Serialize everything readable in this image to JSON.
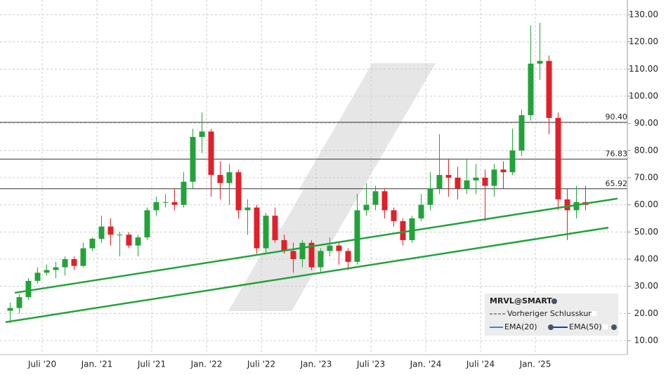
{
  "chart_data": {
    "type": "candlestick",
    "x": [
      "2020-03",
      "2020-04",
      "2020-05",
      "2020-06",
      "2020-07",
      "2020-08",
      "2020-09",
      "2020-10",
      "2020-11",
      "2020-12",
      "2021-01",
      "2021-02",
      "2021-03",
      "2021-04",
      "2021-05",
      "2021-06",
      "2021-07",
      "2021-08",
      "2021-09",
      "2021-10",
      "2021-11",
      "2021-12",
      "2022-01",
      "2022-02",
      "2022-03",
      "2022-04",
      "2022-05",
      "2022-06",
      "2022-07",
      "2022-08",
      "2022-09",
      "2022-10",
      "2022-11",
      "2022-12",
      "2023-01",
      "2023-02",
      "2023-03",
      "2023-04",
      "2023-05",
      "2023-06",
      "2023-07",
      "2023-08",
      "2023-09",
      "2023-10",
      "2023-11",
      "2023-12",
      "2024-01",
      "2024-02",
      "2024-03",
      "2024-04",
      "2024-05",
      "2024-06",
      "2024-07",
      "2024-08",
      "2024-09",
      "2024-10",
      "2024-11",
      "2024-12",
      "2025-01",
      "2025-02",
      "2025-03",
      "2025-04",
      "2025-05",
      "2025-06"
    ],
    "series": [
      {
        "name": "MRVL@SMART",
        "up_color": "#22a33a",
        "down_color": "#e0202a",
        "open": [
          21,
          22,
          26,
          32,
          35,
          36,
          37,
          40,
          37.5,
          44,
          47.5,
          52,
          49,
          49,
          45,
          48,
          58,
          61,
          61,
          60,
          68.5,
          85,
          87,
          71,
          68,
          72,
          58,
          59,
          44,
          56,
          47,
          43,
          40,
          46,
          37,
          43,
          45,
          43,
          39,
          58,
          60,
          65,
          58,
          54,
          47,
          55,
          60,
          66,
          71,
          70,
          66,
          69,
          70,
          67,
          73,
          72,
          80,
          93,
          112,
          113,
          92,
          62,
          58,
          61
        ],
        "high": [
          24,
          27,
          33,
          37,
          38,
          39,
          41,
          41,
          46,
          48,
          56,
          55,
          50,
          50,
          49,
          59,
          63,
          64,
          66,
          72,
          88,
          94,
          88,
          76,
          75,
          73,
          62,
          60,
          57,
          59,
          49,
          46,
          47,
          47,
          44,
          48,
          46,
          44,
          64,
          68,
          67,
          66,
          59,
          55,
          56,
          64,
          72,
          86,
          77,
          74,
          77,
          75,
          73,
          75,
          76,
          88,
          95,
          126,
          127,
          115,
          94,
          66,
          67,
          67
        ],
        "low": [
          16.5,
          20,
          25,
          31,
          34,
          33,
          34,
          36,
          37,
          43,
          46,
          45,
          41,
          44,
          41,
          47,
          56,
          59,
          58,
          59,
          66,
          79,
          63,
          62,
          60,
          55,
          49,
          42,
          42,
          46,
          42,
          35,
          37,
          36,
          35,
          41,
          38,
          36,
          38,
          56,
          58,
          55,
          52,
          45,
          46,
          54,
          58,
          64,
          63,
          62,
          64,
          64,
          54,
          63,
          66,
          71,
          78,
          91,
          106,
          86,
          58,
          47,
          55,
          58
        ],
        "close": [
          22,
          26,
          32,
          35,
          36,
          37,
          40,
          37.5,
          44,
          47.5,
          52,
          49,
          49,
          45,
          48,
          58,
          61,
          61,
          60,
          68.5,
          85,
          87,
          71,
          68,
          72,
          58,
          59,
          44,
          56,
          47,
          43,
          40,
          46,
          37,
          43,
          45,
          43,
          39,
          58,
          60,
          65,
          58,
          54,
          47,
          55,
          60,
          66,
          71,
          70,
          66,
          69,
          70,
          67,
          73,
          72,
          80,
          93,
          112,
          113,
          92,
          62,
          58,
          61,
          60
        ]
      }
    ],
    "levels": [
      {
        "value": 90.4,
        "label": "90.40"
      },
      {
        "value": 76.83,
        "label": "76.83"
      },
      {
        "value": 65.92,
        "label": "65.92"
      }
    ],
    "trendlines": [
      {
        "color": "#22a33a",
        "x": [
          "2020-04",
          "2025-10"
        ],
        "values": [
          27.6,
          62.3
        ]
      },
      {
        "color": "#22a33a",
        "x": [
          "2020-03",
          "2025-09"
        ],
        "values": [
          16.8,
          51.6
        ]
      }
    ],
    "ylim": [
      10,
      130
    ],
    "yticks": [
      {
        "value": 10,
        "label": "10.00"
      },
      {
        "value": 20,
        "label": "20.00"
      },
      {
        "value": 30,
        "label": "30.00"
      },
      {
        "value": 40,
        "label": "40.00"
      },
      {
        "value": 50,
        "label": "50.00"
      },
      {
        "value": 60,
        "label": "60.00"
      },
      {
        "value": 70,
        "label": "70.00"
      },
      {
        "value": 80,
        "label": "80.00"
      },
      {
        "value": 90,
        "label": "90.00"
      },
      {
        "value": 100,
        "label": "100.00"
      },
      {
        "value": 110,
        "label": "110.00"
      },
      {
        "value": 120,
        "label": "120.00"
      },
      {
        "value": 130,
        "label": "130.00"
      }
    ],
    "xticks": [
      {
        "value": "2020-07",
        "label": "Juli '20"
      },
      {
        "value": "2021-01",
        "label": "Jan. '21"
      },
      {
        "value": "2021-07",
        "label": "Juli '21"
      },
      {
        "value": "2022-01",
        "label": "Jan. '22"
      },
      {
        "value": "2022-07",
        "label": "Juli '22"
      },
      {
        "value": "2023-01",
        "label": "Jan. '23"
      },
      {
        "value": "2023-07",
        "label": "Juli '23"
      },
      {
        "value": "2024-01",
        "label": "Jan. '24"
      },
      {
        "value": "2024-07",
        "label": "Juli '24"
      },
      {
        "value": "2025-01",
        "label": "Jan. '25"
      }
    ],
    "grid": true,
    "legend": {
      "title": "MRVL@SMART",
      "items": [
        "Vorheriger Schlusskurs",
        "EMA(20)",
        "EMA(50)"
      ]
    }
  }
}
